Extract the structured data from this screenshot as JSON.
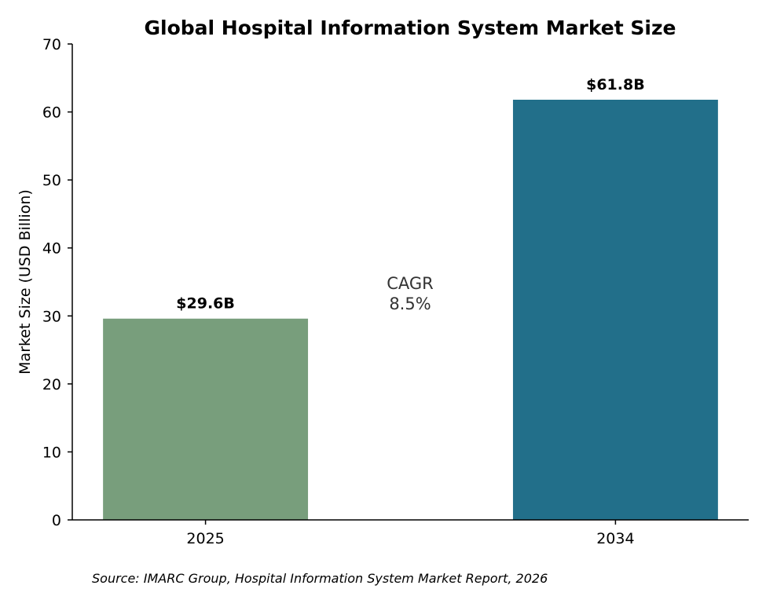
{
  "chart_data": {
    "type": "bar",
    "title": "Global Hospital Information System Market Size",
    "xlabel": "",
    "ylabel": "Market Size (USD Billion)",
    "categories": [
      "2025",
      "2034"
    ],
    "values": [
      29.6,
      61.8
    ],
    "value_labels": [
      "$29.6B",
      "$61.8B"
    ],
    "colors": [
      "#789e7c",
      "#226f8a"
    ],
    "ylim": [
      0,
      70
    ],
    "yticks": [
      0,
      10,
      20,
      30,
      40,
      50,
      60,
      70
    ],
    "grid": false,
    "annotation": {
      "line1": "CAGR",
      "line2": "8.5%"
    },
    "source": "Source: IMARC Group, Hospital Information System Market Report, 2026"
  }
}
